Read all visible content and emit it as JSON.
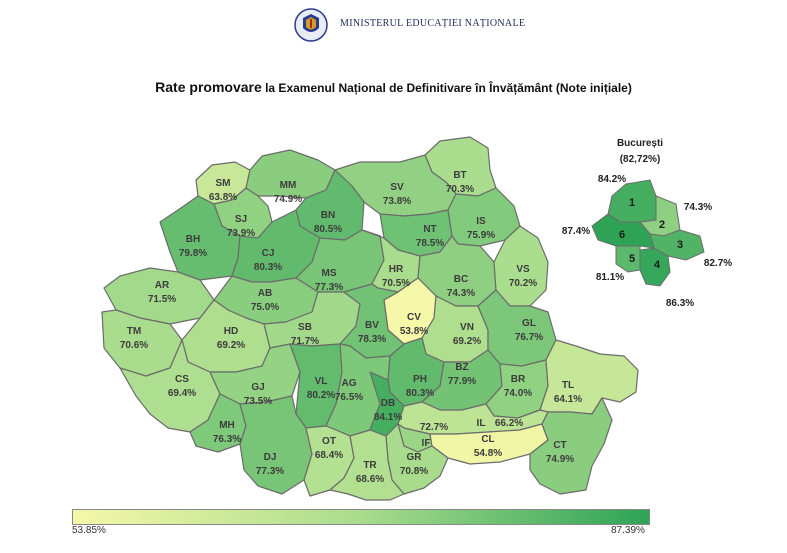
{
  "header": {
    "ministry": "MINISTERUL EDUCAȚIEI NAȚIONALE"
  },
  "title": {
    "bold_part": "Rate promovare",
    "rest": "la Examenul Național de Definitivare în Învățământ (Note inițiale)"
  },
  "colors": {
    "scale_low": "#f4f8a8",
    "scale_mid": "#a9dc8d",
    "scale_high": "#2ea356",
    "border": "#6b6b6b"
  },
  "legend": {
    "min": "53.85%",
    "max": "87.39%"
  },
  "counties": [
    {
      "code": "SM",
      "value": "63.8%"
    },
    {
      "code": "MM",
      "value": "74.9%"
    },
    {
      "code": "BT",
      "value": "70.3%"
    },
    {
      "code": "SV",
      "value": "73.8%"
    },
    {
      "code": "SJ",
      "value": "73.9%"
    },
    {
      "code": "BN",
      "value": "80.5%"
    },
    {
      "code": "BH",
      "value": "79.8%"
    },
    {
      "code": "CJ",
      "value": "80.3%"
    },
    {
      "code": "NT",
      "value": "78.5%"
    },
    {
      "code": "IS",
      "value": "75.9%"
    },
    {
      "code": "AR",
      "value": "71.5%"
    },
    {
      "code": "MS",
      "value": "77.3%"
    },
    {
      "code": "HR",
      "value": "70.5%"
    },
    {
      "code": "BC",
      "value": "74.3%"
    },
    {
      "code": "VS",
      "value": "70.2%"
    },
    {
      "code": "AB",
      "value": "75.0%"
    },
    {
      "code": "CV",
      "value": "53.8%"
    },
    {
      "code": "TM",
      "value": "70.6%"
    },
    {
      "code": "HD",
      "value": "69.2%"
    },
    {
      "code": "SB",
      "value": "71.7%"
    },
    {
      "code": "BV",
      "value": "78.3%"
    },
    {
      "code": "VN",
      "value": "69.2%"
    },
    {
      "code": "GL",
      "value": "76.7%"
    },
    {
      "code": "CS",
      "value": "69.4%"
    },
    {
      "code": "GJ",
      "value": "73.5%"
    },
    {
      "code": "VL",
      "value": "80.2%"
    },
    {
      "code": "AG",
      "value": "76.5%"
    },
    {
      "code": "PH",
      "value": "80.3%"
    },
    {
      "code": "BZ",
      "value": "77.9%"
    },
    {
      "code": "BR",
      "value": "74.0%"
    },
    {
      "code": "TL",
      "value": "64.1%"
    },
    {
      "code": "DB",
      "value": "84.1%"
    },
    {
      "code": "MH",
      "value": "76.3%"
    },
    {
      "code": "IL",
      "value": "66.2%"
    },
    {
      "code": "DJ",
      "value": "77.3%"
    },
    {
      "code": "OT",
      "value": "68.4%"
    },
    {
      "code": "IF",
      "value": "72.7%"
    },
    {
      "code": "CL",
      "value": "54.8%"
    },
    {
      "code": "CT",
      "value": "74.9%"
    },
    {
      "code": "GR",
      "value": "70.8%"
    },
    {
      "code": "TR",
      "value": "68.6%"
    }
  ],
  "bucuresti": {
    "title": "București",
    "value": "(82,72%)",
    "sectors": [
      {
        "number": "1",
        "value": "84.2%"
      },
      {
        "number": "2",
        "value": "74.3%"
      },
      {
        "number": "3",
        "value": "82.7%"
      },
      {
        "number": "4",
        "value": "86.3%"
      },
      {
        "number": "5",
        "value": "81.1%"
      },
      {
        "number": "6",
        "value": "87.4%"
      }
    ]
  }
}
